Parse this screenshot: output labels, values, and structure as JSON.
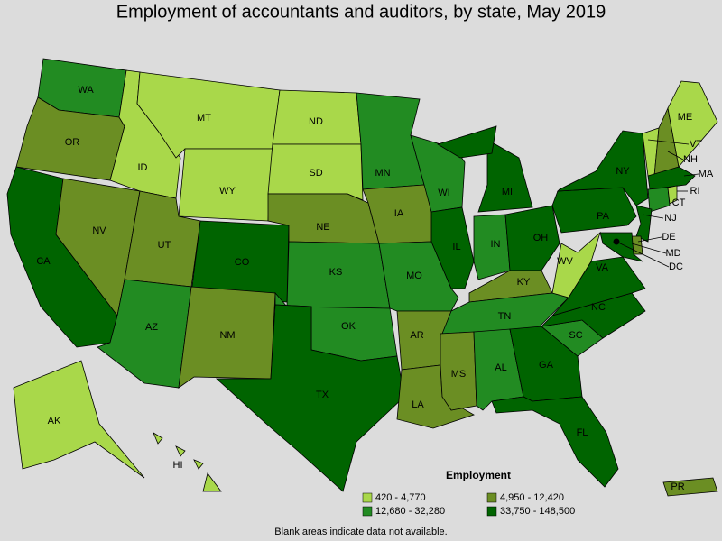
{
  "title": "Employment of accountants and auditors, by state, May 2019",
  "legend": {
    "title": "Employment",
    "items": [
      {
        "label": "420 - 4,770",
        "color": "#a9d84a"
      },
      {
        "label": "4,950 - 12,420",
        "color": "#6b8e23"
      },
      {
        "label": "12,680 - 32,280",
        "color": "#228b22"
      },
      {
        "label": "33,750 - 148,500",
        "color": "#006400"
      }
    ]
  },
  "states": [
    {
      "label": "WA",
      "group": 2
    },
    {
      "label": "OR",
      "group": 1
    },
    {
      "label": "CA",
      "group": 3
    },
    {
      "label": "NV",
      "group": 1
    },
    {
      "label": "ID",
      "group": 0
    },
    {
      "label": "MT",
      "group": 0
    },
    {
      "label": "WY",
      "group": 0
    },
    {
      "label": "UT",
      "group": 1
    },
    {
      "label": "AZ",
      "group": 2
    },
    {
      "label": "CO",
      "group": 3
    },
    {
      "label": "NM",
      "group": 1
    },
    {
      "label": "ND",
      "group": 0
    },
    {
      "label": "SD",
      "group": 0
    },
    {
      "label": "NE",
      "group": 1
    },
    {
      "label": "KS",
      "group": 2
    },
    {
      "label": "OK",
      "group": 2
    },
    {
      "label": "TX",
      "group": 3
    },
    {
      "label": "MN",
      "group": 2
    },
    {
      "label": "IA",
      "group": 1
    },
    {
      "label": "MO",
      "group": 2
    },
    {
      "label": "AR",
      "group": 1
    },
    {
      "label": "LA",
      "group": 1
    },
    {
      "label": "WI",
      "group": 2
    },
    {
      "label": "IL",
      "group": 3
    },
    {
      "label": "MI",
      "group": 3
    },
    {
      "label": "IN",
      "group": 2
    },
    {
      "label": "OH",
      "group": 3
    },
    {
      "label": "KY",
      "group": 1
    },
    {
      "label": "TN",
      "group": 2
    },
    {
      "label": "MS",
      "group": 1
    },
    {
      "label": "AL",
      "group": 2
    },
    {
      "label": "GA",
      "group": 3
    },
    {
      "label": "FL",
      "group": 3
    },
    {
      "label": "SC",
      "group": 2
    },
    {
      "label": "NC",
      "group": 3
    },
    {
      "label": "VA",
      "group": 3
    },
    {
      "label": "WV",
      "group": 0
    },
    {
      "label": "PA",
      "group": 3
    },
    {
      "label": "NY",
      "group": 3
    },
    {
      "label": "VT",
      "group": 0
    },
    {
      "label": "NH",
      "group": 1
    },
    {
      "label": "ME",
      "group": 0
    },
    {
      "label": "MA",
      "group": 3
    },
    {
      "label": "CT",
      "group": 2
    },
    {
      "label": "RI",
      "group": 0
    },
    {
      "label": "NJ",
      "group": 3
    },
    {
      "label": "DE",
      "group": 1
    },
    {
      "label": "MD",
      "group": 3
    },
    {
      "label": "DC",
      "group": 3
    },
    {
      "label": "AK",
      "group": 0
    },
    {
      "label": "HI",
      "group": 0
    },
    {
      "label": "PR",
      "group": 1
    }
  ],
  "note": "Blank areas indicate data not available."
}
